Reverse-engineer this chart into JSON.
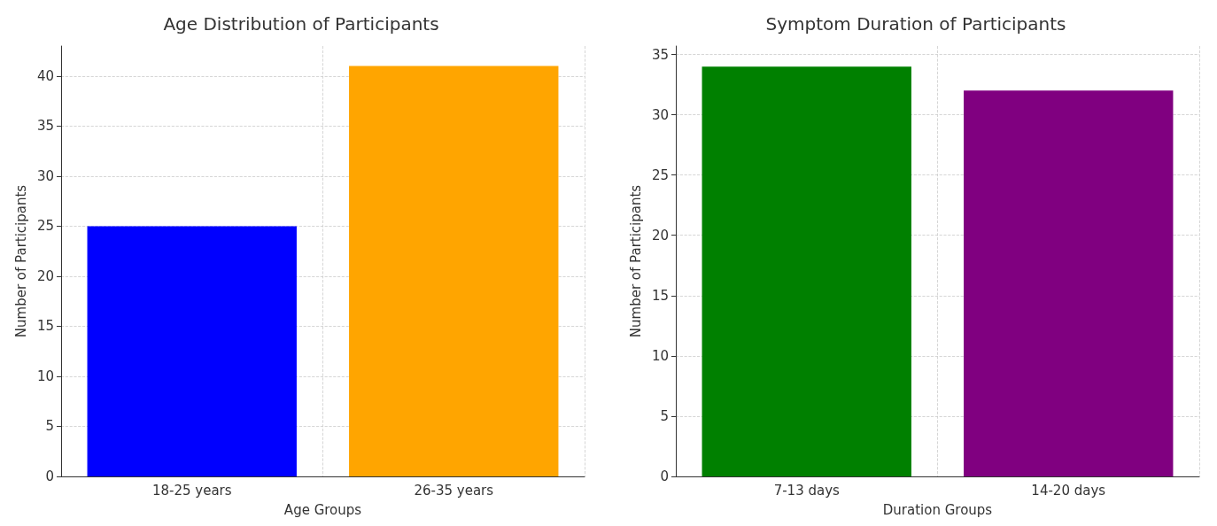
{
  "chart_data": [
    {
      "type": "bar",
      "title": "Age Distribution of Participants",
      "xlabel": "Age Groups",
      "ylabel": "Number of Participants",
      "categories": [
        "18-25 years",
        "26-35 years"
      ],
      "colors": [
        "#0000ff",
        "#ffa500"
      ],
      "values": [
        25,
        41
      ],
      "ylim": [
        0,
        43
      ],
      "yticks": [
        0,
        5,
        10,
        15,
        20,
        25,
        30,
        35,
        40
      ],
      "grid": true
    },
    {
      "type": "bar",
      "title": "Symptom Duration of Participants",
      "xlabel": "Duration Groups",
      "ylabel": "Number of Participants",
      "categories": [
        "7-13 days",
        "14-20 days"
      ],
      "colors": [
        "#008000",
        "#800080"
      ],
      "values": [
        34,
        32
      ],
      "ylim": [
        0,
        35.7
      ],
      "yticks": [
        0,
        5,
        10,
        15,
        20,
        25,
        30,
        35
      ],
      "grid": true
    }
  ]
}
